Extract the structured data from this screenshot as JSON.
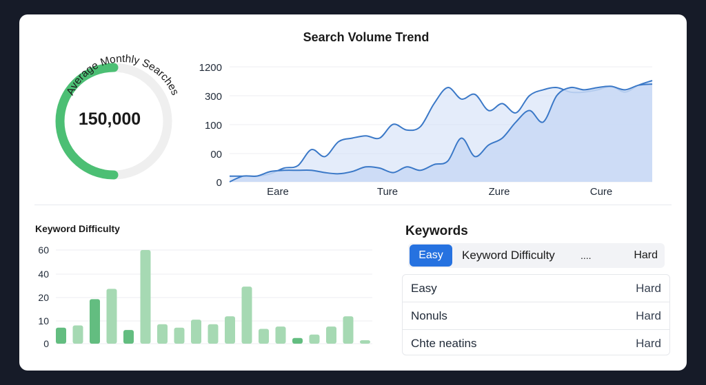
{
  "gauge": {
    "label": "Average Monthly Searches",
    "value": "150,000",
    "progress": 0.5,
    "color": "#4cbf74",
    "track_color": "#efefef"
  },
  "trend": {
    "title": "Search Volume Trend",
    "y_ticks": [
      "1200",
      "300",
      "100",
      "00",
      "0"
    ],
    "x_labels": [
      "Eare",
      "Ture",
      "Zure",
      "Cure"
    ],
    "line_color": "#3a78c7",
    "fill_color": "#c9d9f5"
  },
  "difficulty": {
    "title": "Keyword Difficulty",
    "y_ticks": [
      "60",
      "40",
      "20",
      "10",
      "0"
    ],
    "colors": {
      "dark": "#63bd80",
      "light": "#a6d9b3"
    }
  },
  "keywords": {
    "title": "Keywords",
    "header": {
      "easy_label": "Easy",
      "difficulty_label": "Keyword Difficulty",
      "more_label": "....",
      "hard_label": "Hard"
    },
    "rows": [
      {
        "name": "Easy",
        "difficulty": "Hard"
      },
      {
        "name": "Nonuls",
        "difficulty": "Hard"
      },
      {
        "name": "Chte neatins",
        "difficulty": "Hard"
      }
    ],
    "accent": "#2672e0"
  },
  "chart_data": [
    {
      "type": "area",
      "title": "Search Volume Trend",
      "y_tick_labels": [
        "1200",
        "300",
        "100",
        "00",
        "0"
      ],
      "x_tick_labels": [
        "Eare",
        "Ture",
        "Zure",
        "Cure"
      ],
      "series": [
        {
          "values": [
            0.05,
            0.05,
            0.05,
            0.07,
            0.12,
            0.14,
            0.28,
            0.22,
            0.35,
            0.38,
            0.4,
            0.38,
            0.5,
            0.45,
            0.48,
            0.68,
            0.82,
            0.72,
            0.76,
            0.62,
            0.68,
            0.6,
            0.75,
            0.8,
            0.82,
            0.78,
            0.78,
            0.8,
            0.83,
            0.78,
            0.84,
            0.88
          ]
        },
        {
          "values": [
            0,
            0.05,
            0.05,
            0.09,
            0.1,
            0.1,
            0.1,
            0.08,
            0.07,
            0.09,
            0.13,
            0.12,
            0.08,
            0.13,
            0.1,
            0.15,
            0.18,
            0.38,
            0.22,
            0.32,
            0.38,
            0.52,
            0.62,
            0.52,
            0.75,
            0.82,
            0.8,
            0.82,
            0.83,
            0.8,
            0.84,
            0.85
          ]
        }
      ]
    },
    {
      "type": "bar",
      "title": "Keyword Difficulty",
      "y_tick_labels": [
        "60",
        "40",
        "20",
        "10",
        "0"
      ],
      "values": [
        14,
        16,
        39,
        48,
        12,
        82,
        17,
        14,
        21,
        17,
        24,
        50,
        13,
        15,
        5,
        8,
        15,
        24,
        3
      ],
      "shade": [
        "dark",
        "light",
        "dark",
        "light",
        "dark",
        "light",
        "light",
        "light",
        "light",
        "light",
        "light",
        "light",
        "light",
        "light",
        "dark",
        "light",
        "light",
        "light",
        "light"
      ]
    }
  ]
}
